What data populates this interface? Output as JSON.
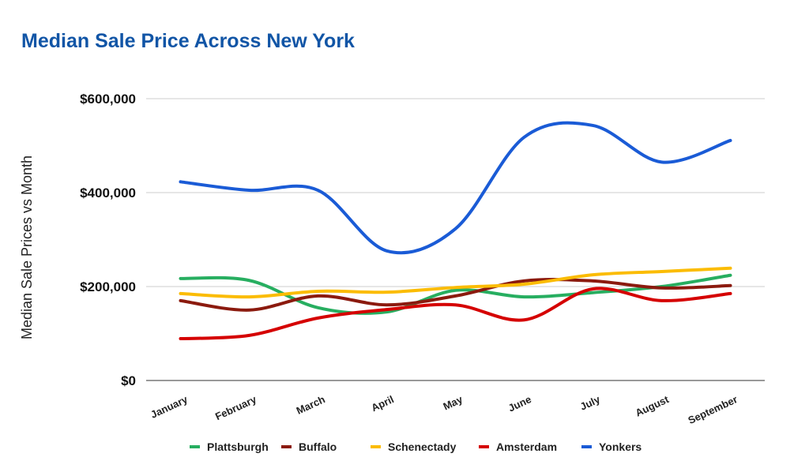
{
  "chart_data": {
    "type": "line",
    "title": "Median Sale Price Across New York",
    "xlabel": "",
    "ylabel": "Median Sale Prices vs Month",
    "ylim": [
      0,
      600000
    ],
    "yticks": [
      0,
      200000,
      400000,
      600000
    ],
    "ytick_labels": [
      "$0",
      "$200,000",
      "$400,000",
      "$600,000"
    ],
    "grid": true,
    "legend": "bottom",
    "categories": [
      "January",
      "February",
      "March",
      "April",
      "May",
      "June",
      "July",
      "August",
      "September"
    ],
    "series": [
      {
        "name": "Plattsburgh",
        "color": "#27ae60",
        "values": [
          217000,
          213000,
          155000,
          146000,
          192000,
          178000,
          187000,
          200000,
          224000
        ]
      },
      {
        "name": "Buffalo",
        "color": "#8b1a0e",
        "values": [
          170000,
          150000,
          180000,
          161000,
          180000,
          212000,
          212000,
          197000,
          202000
        ]
      },
      {
        "name": "Schenectady",
        "color": "#fbbc04",
        "values": [
          185000,
          178000,
          190000,
          188000,
          198000,
          205000,
          225000,
          232000,
          239000
        ]
      },
      {
        "name": "Amsterdam",
        "color": "#d50000",
        "values": [
          89000,
          96000,
          133000,
          151000,
          161000,
          129000,
          195000,
          170000,
          185000
        ]
      },
      {
        "name": "Yonkers",
        "color": "#1a5bd6",
        "values": [
          423000,
          405000,
          405000,
          276000,
          323000,
          518000,
          543000,
          465000,
          511000
        ]
      }
    ]
  }
}
